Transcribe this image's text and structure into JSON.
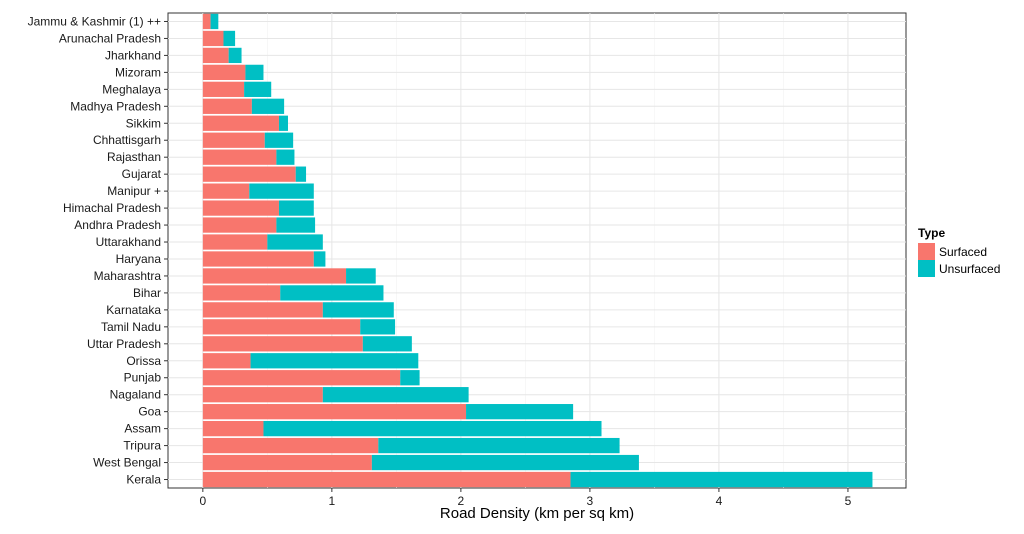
{
  "chart_data": {
    "type": "bar",
    "orientation": "horizontal",
    "stacked": true,
    "title": "",
    "xlabel": "Road Density (km per sq km)",
    "ylabel": "",
    "xlim": [
      -0.27,
      5.45
    ],
    "xticks": [
      0,
      1,
      2,
      3,
      4,
      5
    ],
    "grid": true,
    "legend": {
      "title": "Type",
      "placement": "right"
    },
    "categories": [
      "Jammu & Kashmir (1) ++",
      "Arunachal Pradesh",
      "Jharkhand",
      "Mizoram",
      "Meghalaya",
      "Madhya Pradesh",
      "Sikkim",
      "Chhattisgarh",
      "Rajasthan",
      "Gujarat",
      "Manipur +",
      "Himachal Pradesh",
      "Andhra Pradesh",
      "Uttarakhand",
      "Haryana",
      "Maharashtra",
      "Bihar",
      "Karnataka",
      "Tamil Nadu",
      "Uttar Pradesh",
      "Orissa",
      "Punjab",
      "Nagaland",
      "Goa",
      "Assam",
      "Tripura",
      "West Bengal",
      "Kerala"
    ],
    "series": [
      {
        "name": "Surfaced",
        "color": "#F8766D",
        "values": [
          0.06,
          0.16,
          0.2,
          0.33,
          0.32,
          0.38,
          0.59,
          0.48,
          0.57,
          0.72,
          0.36,
          0.59,
          0.57,
          0.5,
          0.86,
          1.11,
          0.6,
          0.93,
          1.22,
          1.24,
          0.37,
          1.53,
          0.93,
          2.04,
          0.47,
          1.36,
          1.31,
          2.85
        ]
      },
      {
        "name": "Unsurfaced",
        "color": "#00BFC4",
        "values": [
          0.06,
          0.09,
          0.1,
          0.14,
          0.21,
          0.25,
          0.07,
          0.22,
          0.14,
          0.08,
          0.5,
          0.27,
          0.3,
          0.43,
          0.09,
          0.23,
          0.8,
          0.55,
          0.27,
          0.38,
          1.3,
          0.15,
          1.13,
          0.83,
          2.62,
          1.87,
          2.07,
          2.34
        ]
      }
    ]
  }
}
